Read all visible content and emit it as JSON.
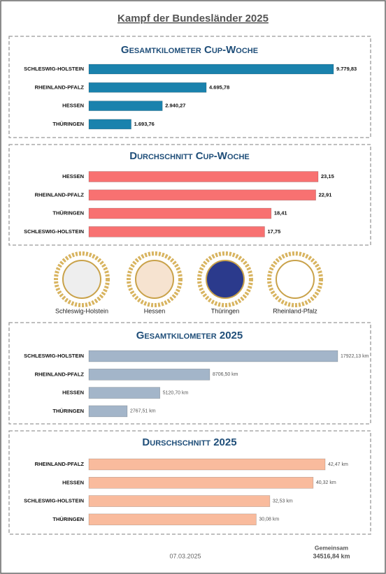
{
  "header": {
    "title": "Kampf der Bundesländer 2025"
  },
  "chart_data": [
    {
      "type": "bar",
      "orientation": "horizontal",
      "title": "Gesamtkilometer Cup-Woche",
      "color": "#1a82ad",
      "categories": [
        "SCHLESWIG-HOLSTEIN",
        "RHEINLAND-PFALZ",
        "HESSEN",
        "THÜRINGEN"
      ],
      "values": [
        9779.83,
        4695.78,
        2940.27,
        1693.76
      ],
      "value_labels": [
        "9.779,83",
        "4.695,78",
        "2.940,27",
        "1.693,76"
      ]
    },
    {
      "type": "bar",
      "orientation": "horizontal",
      "title": "Durchschnitt Cup-Woche",
      "color": "#f87171",
      "categories": [
        "HESSEN",
        "RHEINLAND-PFALZ",
        "THÜRINGEN",
        "SCHLESWIG-HOLSTEIN"
      ],
      "values": [
        23.15,
        22.91,
        18.41,
        17.75
      ],
      "value_labels": [
        "23,15",
        "22,91",
        "18,41",
        "17,75"
      ]
    },
    {
      "type": "bar",
      "orientation": "horizontal",
      "title": "Gesamtkilometer 2025",
      "color": "#a3b5c9",
      "categories": [
        "SCHLESWIG-HOLSTEIN",
        "RHEINLAND-PFALZ",
        "HESSEN",
        "THÜRINGEN"
      ],
      "values": [
        17922.13,
        8706.5,
        5120.7,
        2767.51
      ],
      "value_labels": [
        "17922,13 km",
        "8706,50 km",
        "5120,70 km",
        "2767,51 km"
      ]
    },
    {
      "type": "bar",
      "orientation": "horizontal",
      "title": "Durschschnitt 2025",
      "color": "#f9bb9d",
      "categories": [
        "RHEINLAND-PFALZ",
        "HESSEN",
        "SCHLESWIG-HOLSTEIN",
        "THÜRINGEN"
      ],
      "values": [
        42.47,
        40.32,
        32.53,
        30.08
      ],
      "value_labels": [
        "42,47 km",
        "40,32 km",
        "32,53 km",
        "30,08 km"
      ]
    }
  ],
  "logos": [
    "Schleswig-Holstein",
    "Hessen",
    "Thüringen",
    "Rheinland-Pfalz"
  ],
  "footer": {
    "date": "07.03.2025",
    "total_label": "Gemeinsam",
    "total": "34516,84 km"
  }
}
